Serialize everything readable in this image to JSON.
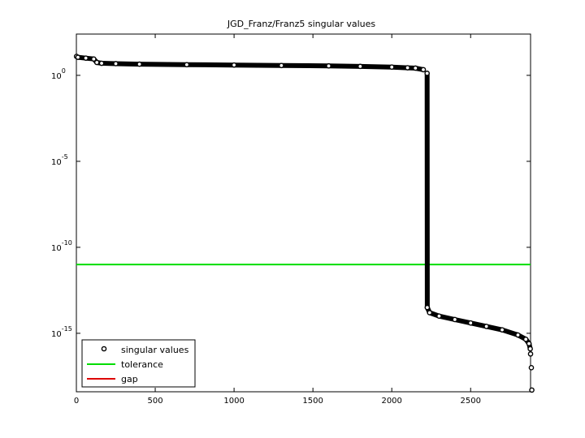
{
  "chart_data": {
    "type": "scatter",
    "title": "JGD_Franz/Franz5 singular values",
    "xlabel": "",
    "ylabel": "",
    "xlim": [
      0,
      2880
    ],
    "ylim_log10": [
      -18.4,
      2.4
    ],
    "y_scale": "log",
    "grid": false,
    "legend_placement": "bottom-left",
    "x_ticks": [
      {
        "value": 0,
        "label": "0"
      },
      {
        "value": 500,
        "label": "500"
      },
      {
        "value": 1000,
        "label": "1000"
      },
      {
        "value": 1500,
        "label": "1500"
      },
      {
        "value": 2000,
        "label": "2000"
      },
      {
        "value": 2500,
        "label": "2500"
      }
    ],
    "y_ticks": [
      {
        "exp": 0,
        "base": "10",
        "sup": "0"
      },
      {
        "exp": -5,
        "base": "10",
        "sup": "-5"
      },
      {
        "exp": -10,
        "base": "10",
        "sup": "-10"
      },
      {
        "exp": -15,
        "base": "10",
        "sup": "-15"
      }
    ],
    "series": [
      {
        "name": "singular values",
        "color": "#000000",
        "marker": "circle-open",
        "x": [
          1,
          10,
          60,
          110,
          130,
          160,
          250,
          400,
          700,
          1000,
          1300,
          1600,
          1800,
          2000,
          2100,
          2150,
          2200,
          2224,
          2225,
          2240,
          2300,
          2400,
          2500,
          2600,
          2700,
          2800,
          2850,
          2870,
          2878,
          2880,
          2885,
          2888
        ],
        "y_log10": [
          1.1,
          1.05,
          1.0,
          0.95,
          0.75,
          0.7,
          0.68,
          0.65,
          0.62,
          0.6,
          0.57,
          0.55,
          0.52,
          0.48,
          0.44,
          0.42,
          0.33,
          0.12,
          -13.5,
          -13.8,
          -14.0,
          -14.2,
          -14.4,
          -14.6,
          -14.8,
          -15.1,
          -15.35,
          -15.6,
          -15.9,
          -16.2,
          -17.0,
          -18.3
        ]
      },
      {
        "name": "tolerance",
        "color": "#00dd00",
        "type": "line",
        "y_log10": -11.0
      },
      {
        "name": "gap",
        "color": "#dd0000",
        "type": "line",
        "x": [
          2224,
          2224
        ],
        "y_log10": [
          0.12,
          -13.5
        ],
        "x_alt": [
          2220,
          2220
        ],
        "y_log10_alt": [
          -1.2,
          -6.7
        ]
      }
    ]
  }
}
